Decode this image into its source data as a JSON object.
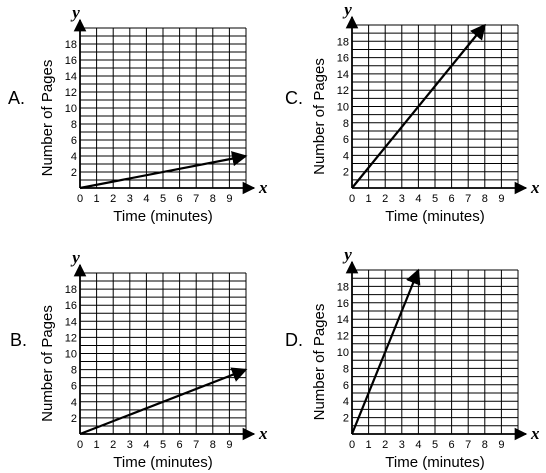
{
  "chart_data": [
    {
      "type": "line",
      "option": "A.",
      "xlabel": "Time (minutes)",
      "ylabel": "Number of Pages",
      "x_var": "x",
      "y_var": "y",
      "xlim": [
        0,
        10
      ],
      "ylim": [
        0,
        20
      ],
      "xticks": [
        "0",
        "1",
        "2",
        "3",
        "4",
        "5",
        "6",
        "7",
        "8",
        "9"
      ],
      "yticks": [
        "2",
        "4",
        "6",
        "8",
        "10",
        "12",
        "14",
        "16",
        "18"
      ],
      "grid": true,
      "x": [
        0,
        10
      ],
      "y": [
        0,
        4
      ]
    },
    {
      "type": "line",
      "option": "C.",
      "xlabel": "Time (minutes)",
      "ylabel": "Number of Pages",
      "x_var": "x",
      "y_var": "y",
      "xlim": [
        0,
        10
      ],
      "ylim": [
        0,
        20
      ],
      "xticks": [
        "0",
        "1",
        "2",
        "3",
        "4",
        "5",
        "6",
        "7",
        "8",
        "9"
      ],
      "yticks": [
        "2",
        "4",
        "6",
        "8",
        "10",
        "12",
        "14",
        "16",
        "18"
      ],
      "grid": true,
      "x": [
        0,
        8
      ],
      "y": [
        0,
        20
      ]
    },
    {
      "type": "line",
      "option": "B.",
      "xlabel": "Time (minutes)",
      "ylabel": "Number of Pages",
      "x_var": "x",
      "y_var": "y",
      "xlim": [
        0,
        10
      ],
      "ylim": [
        0,
        20
      ],
      "xticks": [
        "0",
        "1",
        "2",
        "3",
        "4",
        "5",
        "6",
        "7",
        "8",
        "9"
      ],
      "yticks": [
        "2",
        "4",
        "6",
        "8",
        "10",
        "12",
        "14",
        "16",
        "18"
      ],
      "grid": true,
      "x": [
        0,
        10
      ],
      "y": [
        0,
        8
      ]
    },
    {
      "type": "line",
      "option": "D.",
      "xlabel": "Time (minutes)",
      "ylabel": "Number of Pages",
      "x_var": "x",
      "y_var": "y",
      "xlim": [
        0,
        10
      ],
      "ylim": [
        0,
        20
      ],
      "xticks": [
        "0",
        "1",
        "2",
        "3",
        "4",
        "5",
        "6",
        "7",
        "8",
        "9"
      ],
      "yticks": [
        "2",
        "4",
        "6",
        "8",
        "10",
        "12",
        "14",
        "16",
        "18"
      ],
      "grid": true,
      "x": [
        0,
        4
      ],
      "y": [
        0,
        20
      ]
    }
  ]
}
